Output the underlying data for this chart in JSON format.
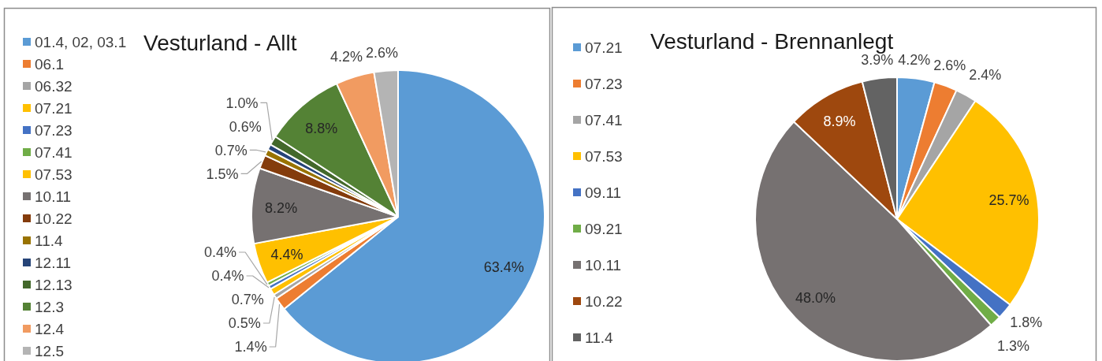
{
  "chart_data": [
    {
      "type": "pie",
      "title": "Vesturland - Allt",
      "categories": [
        "01.4, 02, 03.1",
        "06.1",
        "06.32",
        "07.21",
        "07.23",
        "07.41",
        "07.53",
        "10.11",
        "10.22",
        "11.4",
        "12.11",
        "12.13",
        "12.3",
        "12.4",
        "12.5"
      ],
      "values": [
        63.4,
        1.4,
        0.5,
        0.7,
        0.4,
        0.4,
        4.4,
        8.2,
        1.5,
        0.7,
        0.6,
        1.0,
        8.8,
        4.2,
        2.6
      ],
      "value_labels": [
        "63.4%",
        "1.4%",
        "0.5%",
        "0.7%",
        "0.4%",
        "0.4%",
        "4.4%",
        "8.2%",
        "1.5%",
        "0.7%",
        "0.6%",
        "1.0%",
        "8.8%",
        "4.2%",
        "2.6%"
      ],
      "colors": [
        "#5b9bd5",
        "#ed7d31",
        "#a5a5a5",
        "#ffc000",
        "#4472c4",
        "#70ad47",
        "#ffc000",
        "#767171",
        "#843c0c",
        "#997300",
        "#264478",
        "#43682b",
        "#548235",
        "#f19b61",
        "#b4b4b4"
      ],
      "legend": "left"
    },
    {
      "type": "pie",
      "title": "Vesturland - Brennanlegt",
      "categories": [
        "07.21",
        "07.23",
        "07.41",
        "07.53",
        "09.11",
        "09.21",
        "10.11",
        "10.22",
        "11.4"
      ],
      "values": [
        4.2,
        2.6,
        2.4,
        25.7,
        1.8,
        1.3,
        48.0,
        8.9,
        3.9
      ],
      "value_labels": [
        "4.2%",
        "2.6%",
        "2.4%",
        "25.7%",
        "1.8%",
        "1.3%",
        "48.0%",
        "8.9%",
        "3.9%"
      ],
      "colors": [
        "#5b9bd5",
        "#ed7d31",
        "#a5a5a5",
        "#ffc000",
        "#4472c4",
        "#70ad47",
        "#767171",
        "#9e480e",
        "#636363"
      ],
      "legend": "left"
    }
  ]
}
